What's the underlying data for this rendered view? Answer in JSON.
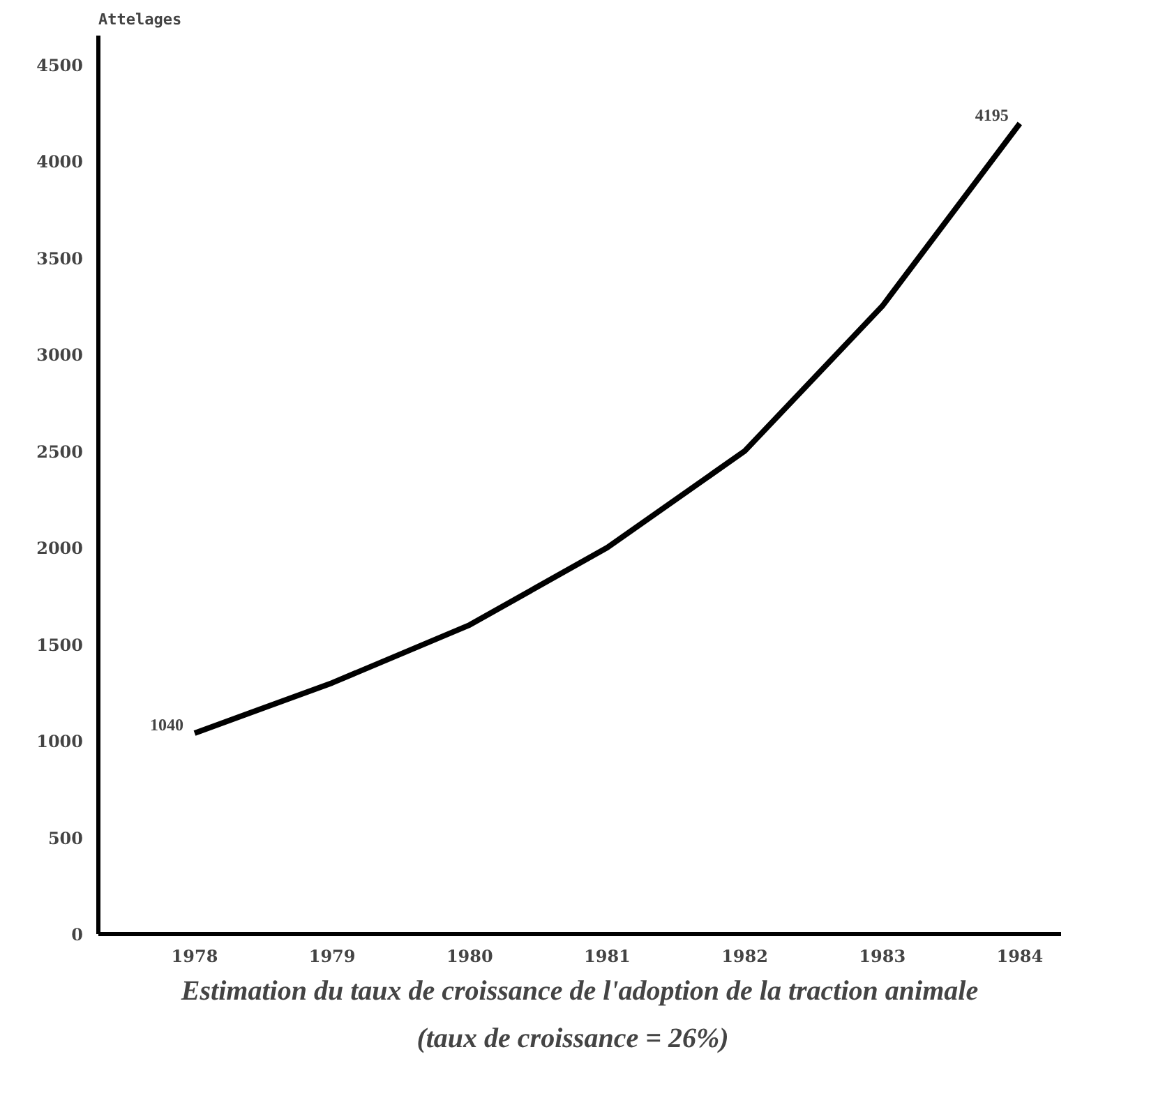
{
  "chart_data": {
    "type": "line",
    "title": "Estimation du taux de croissance de l'adoption de la traction animale",
    "subtitle": "(taux  de croissance  = 26%)",
    "ylabel": "Attelages",
    "x": [
      1978,
      1979,
      1980,
      1981,
      1982,
      1983,
      1984
    ],
    "series": [
      {
        "color": "#000000",
        "values": [
          1040,
          1300,
          1600,
          2000,
          2500,
          3250,
          4195
        ],
        "value_labels": [
          "1040",
          null,
          null,
          null,
          null,
          null,
          "4195"
        ]
      }
    ],
    "xlim": [
      1977.3,
      1984.3
    ],
    "xticks": [
      1978,
      1979,
      1980,
      1981,
      1982,
      1983,
      1984
    ],
    "ylim": [
      0,
      4650
    ],
    "yticks": [
      0,
      500,
      1000,
      1500,
      2000,
      2500,
      3000,
      3500,
      4000,
      4500
    ],
    "grid": false,
    "marker": "none",
    "line_style": "solid"
  }
}
